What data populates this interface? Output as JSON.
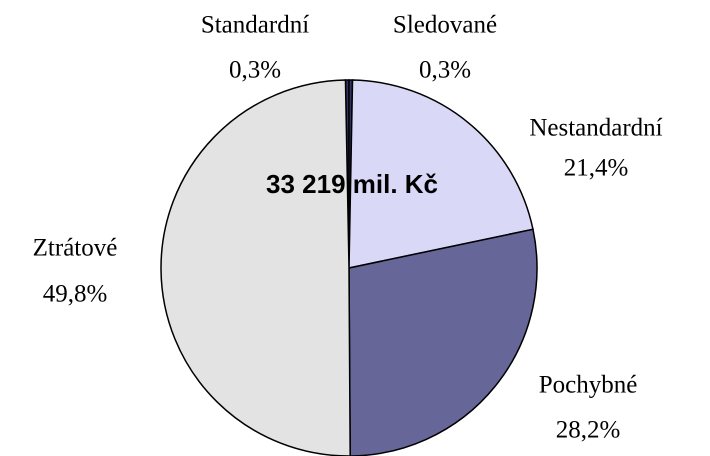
{
  "chart_data": {
    "type": "pie",
    "annotation": "33 219 mil. Kč",
    "categories": [
      "Standardní",
      "Sledované",
      "Nestandardní",
      "Pochybné",
      "Ztrátové"
    ],
    "values": [
      0.3,
      0.3,
      21.4,
      28.2,
      49.8
    ],
    "value_labels": [
      "0,3%",
      "0,3%",
      "21,4%",
      "28,2%",
      "49,8%"
    ],
    "colors": [
      "#333366",
      "#333366",
      "#d9d9f7",
      "#666699",
      "#e3e3e3"
    ]
  }
}
